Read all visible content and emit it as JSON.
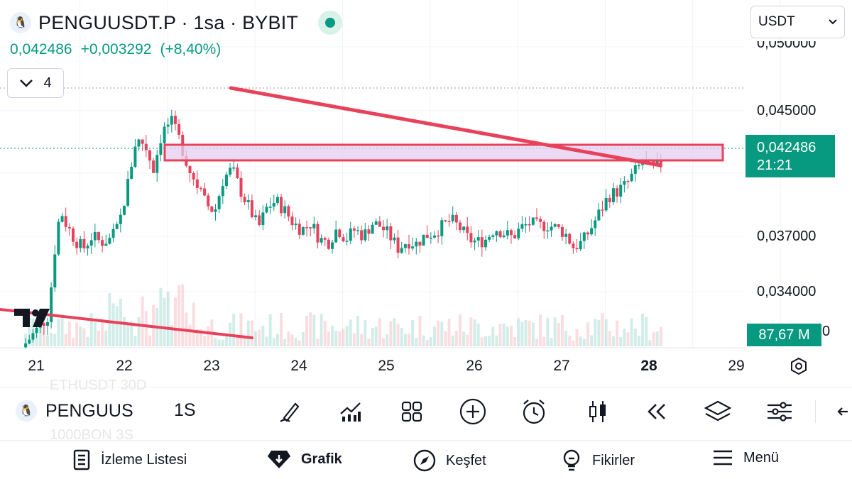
{
  "header": {
    "symbol_title": "PENGUUSDT.P · 1sa · BYBIT",
    "last_price": "0,042486",
    "change": "+0,003292",
    "change_pct": "(+8,40%)",
    "indicator_count": "4",
    "currency": "USDT"
  },
  "y_axis": {
    "labels": [
      "0,050000",
      "0,045000",
      "0,037000",
      "0,034000"
    ],
    "partial_label": "0"
  },
  "price_badge": {
    "price": "0,042486",
    "countdown": "21:21"
  },
  "volume_badge": "87,67 M",
  "x_axis": {
    "labels": [
      "21",
      "22",
      "23",
      "24",
      "25",
      "26",
      "27",
      "28",
      "29"
    ],
    "bold_label": "28"
  },
  "toolbar": {
    "symbol": "PENGUUS",
    "interval": "1S",
    "ghost_top": "ETHUSDT   30D",
    "ghost_bottom": "1000BON   3S",
    "icons": [
      "draw-icon",
      "indicators-icon",
      "layouts-icon",
      "add-icon",
      "alert-icon",
      "candle-style-icon",
      "replay-icon",
      "layers-icon",
      "settings-sliders-icon",
      "back-arrow-icon"
    ]
  },
  "bottom_nav": {
    "watchlist": "İzleme Listesi",
    "chart": "Grafik",
    "explore": "Keşfet",
    "ideas": "Fikirler",
    "menu": "Menü"
  },
  "colors": {
    "up": "#089981",
    "down": "#e8415b",
    "drawing": "#e8415b",
    "zone_fill": "#e6cdf0"
  },
  "chart_data": {
    "type": "candlestick",
    "x_categories": [
      "21",
      "22",
      "23",
      "24",
      "25",
      "26",
      "27",
      "28",
      "29"
    ],
    "ylim": [
      0.031,
      0.051
    ],
    "close_path": [
      [
        0.0,
        0.031
      ],
      [
        0.6,
        0.033
      ],
      [
        0.8,
        0.0385
      ],
      [
        0.9,
        0.0395
      ],
      [
        1.0,
        0.0388
      ],
      [
        1.2,
        0.0378
      ],
      [
        1.4,
        0.0372
      ],
      [
        1.6,
        0.038
      ],
      [
        1.8,
        0.0376
      ],
      [
        2.0,
        0.0378
      ],
      [
        2.2,
        0.0385
      ],
      [
        2.4,
        0.041
      ],
      [
        2.6,
        0.044
      ],
      [
        2.8,
        0.0438
      ],
      [
        3.0,
        0.0422
      ],
      [
        3.2,
        0.0445
      ],
      [
        3.4,
        0.0452
      ],
      [
        3.6,
        0.044
      ],
      [
        3.8,
        0.0423
      ],
      [
        4.0,
        0.0412
      ],
      [
        4.2,
        0.04
      ],
      [
        4.4,
        0.0395
      ],
      [
        4.6,
        0.0416
      ],
      [
        4.8,
        0.0422
      ],
      [
        5.0,
        0.0408
      ],
      [
        5.2,
        0.0397
      ],
      [
        5.4,
        0.0385
      ],
      [
        5.6,
        0.0398
      ],
      [
        5.8,
        0.0402
      ],
      [
        6.0,
        0.0396
      ],
      [
        6.2,
        0.0388
      ],
      [
        6.4,
        0.0384
      ],
      [
        6.6,
        0.0388
      ],
      [
        6.8,
        0.0378
      ],
      [
        7.0,
        0.0376
      ],
      [
        7.2,
        0.0385
      ],
      [
        7.4,
        0.0378
      ],
      [
        7.6,
        0.0384
      ],
      [
        7.8,
        0.038
      ],
      [
        8.0,
        0.0388
      ],
      [
        8.2,
        0.0386
      ],
      [
        8.4,
        0.038
      ],
      [
        8.6,
        0.0372
      ],
      [
        8.8,
        0.0377
      ],
      [
        9.0,
        0.0375
      ],
      [
        9.2,
        0.038
      ],
      [
        9.4,
        0.0382
      ],
      [
        9.6,
        0.0386
      ],
      [
        9.8,
        0.039
      ],
      [
        10.0,
        0.0385
      ],
      [
        10.2,
        0.0378
      ],
      [
        10.4,
        0.0376
      ],
      [
        10.6,
        0.0378
      ],
      [
        10.8,
        0.0385
      ],
      [
        11.0,
        0.0382
      ],
      [
        11.2,
        0.0379
      ],
      [
        11.4,
        0.0385
      ],
      [
        11.6,
        0.0388
      ],
      [
        11.8,
        0.0386
      ],
      [
        12.0,
        0.0387
      ],
      [
        12.2,
        0.0385
      ],
      [
        12.4,
        0.0382
      ],
      [
        12.6,
        0.0373
      ],
      [
        12.8,
        0.0376
      ],
      [
        13.0,
        0.0385
      ],
      [
        13.2,
        0.0395
      ],
      [
        13.4,
        0.0405
      ],
      [
        13.6,
        0.0408
      ],
      [
        13.8,
        0.0412
      ],
      [
        14.0,
        0.042
      ],
      [
        14.2,
        0.0427
      ],
      [
        14.4,
        0.0422
      ],
      [
        14.6,
        0.0425
      ]
    ],
    "volume_label": "87,67 M",
    "drawings": [
      {
        "type": "trendline",
        "description": "descending resistance from 23 to 28"
      },
      {
        "type": "zone",
        "description": "horizontal support/resistance zone"
      },
      {
        "type": "trendline",
        "description": "lower descending line from 21 to 23"
      }
    ]
  }
}
